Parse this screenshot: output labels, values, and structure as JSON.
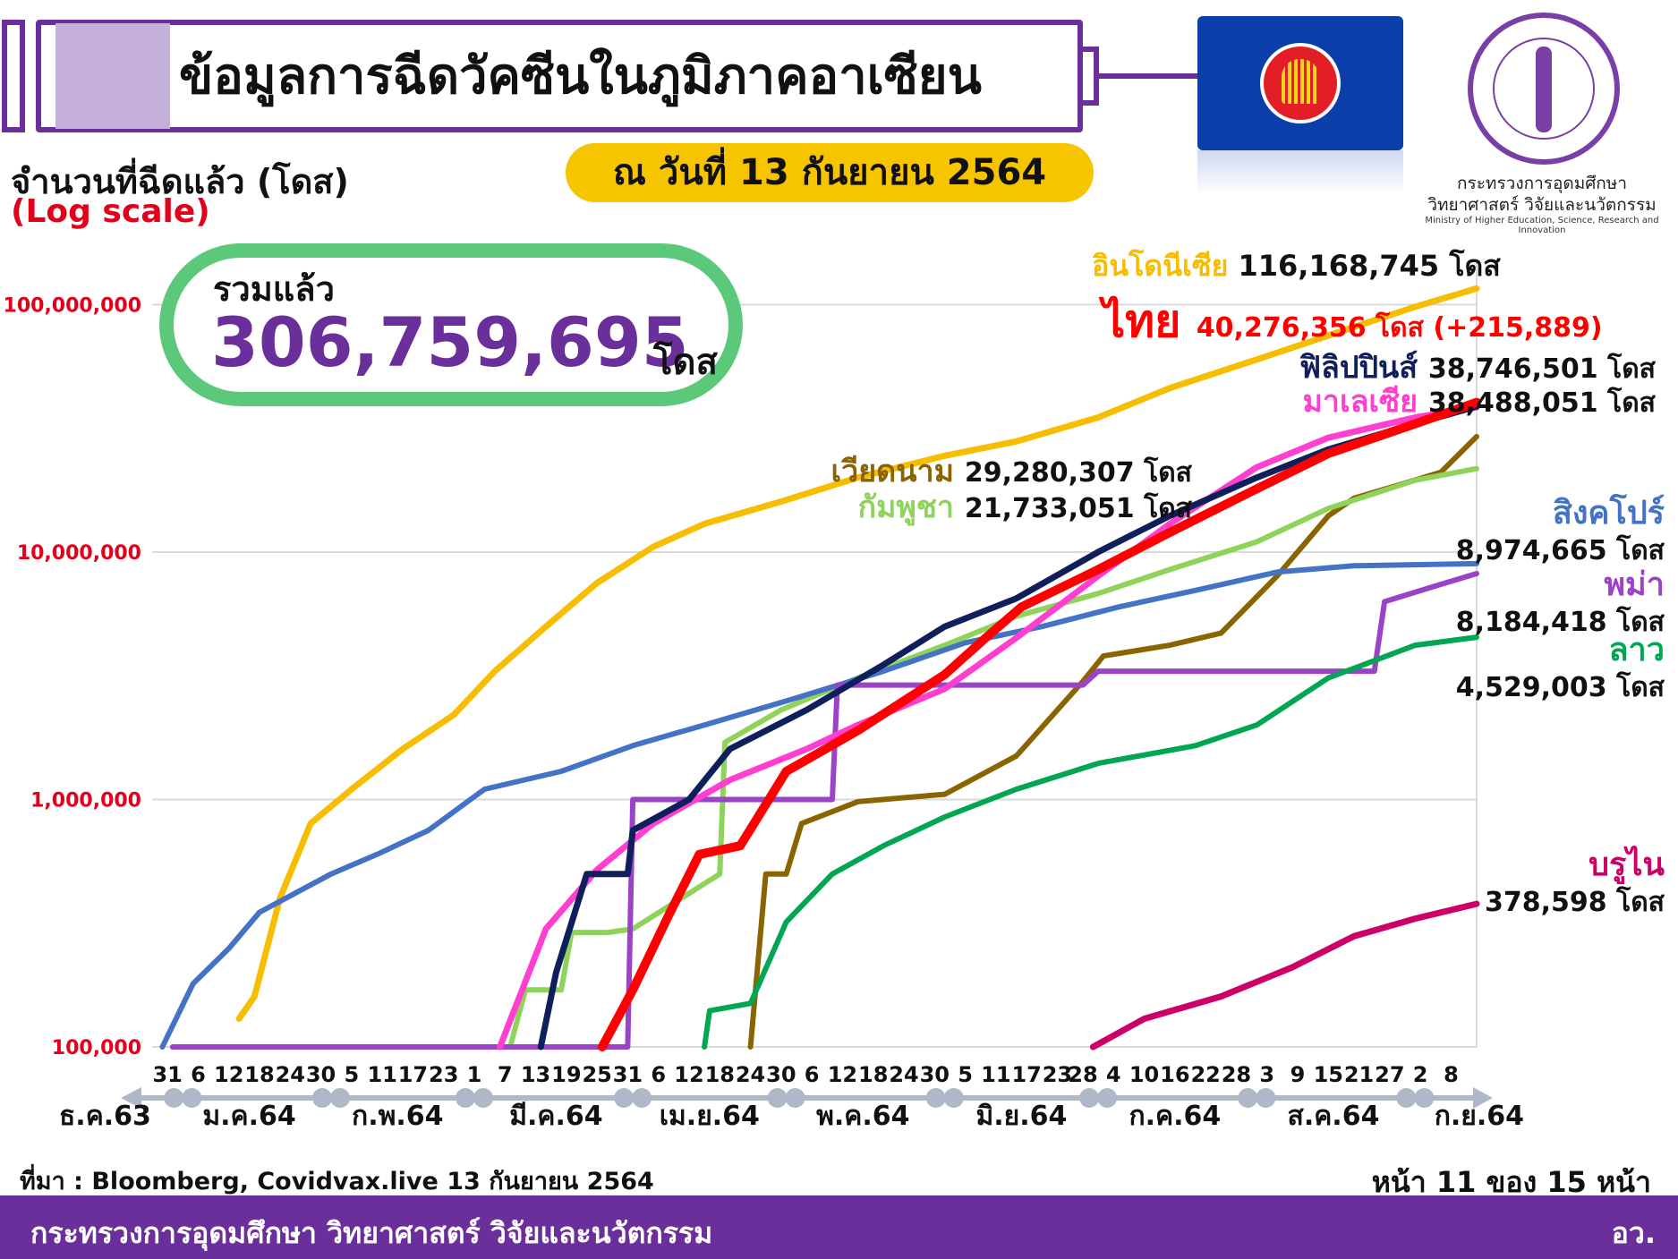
{
  "header": {
    "title": "ข้อมูลการฉีดวัคซีนในภูมิภาคอาเซียน",
    "date": "ณ วันที่ 13 กันยายน 2564"
  },
  "ministry": {
    "label_line1": "กระทรวงการอุดมศึกษา",
    "label_line2": "วิทยาศาสตร์ วิจัยและนวัตกรรม",
    "label_en": "Ministry of Higher Education, Science, Research and Innovation"
  },
  "total": {
    "label": "รวมแล้ว",
    "value": "306,759,695",
    "unit": "โดส"
  },
  "footer": {
    "source": "ที่มา : Bloomberg, Covidvax.live 13 กันยายน 2564",
    "page": "หน้า 11 ของ 15 หน้า",
    "org": "กระทรวงการอุดมศึกษา วิทยาศาสตร์ วิจัยและนวัตกรรม",
    "abbr": "อว."
  },
  "colors": {
    "indonesia": "#f7bd00",
    "thailand": "#ff0000",
    "philippines": "#0f1f5c",
    "malaysia": "#ff3fd0",
    "vietnam": "#8a6400",
    "cambodia": "#8fd35a",
    "singapore": "#4472c4",
    "myanmar": "#9a42c8",
    "laos": "#00a651",
    "brunei": "#cc0066",
    "grid": "#d9d9d9",
    "axis": "#aeb8c8"
  },
  "chart_data": {
    "type": "line",
    "yscale": "log",
    "ylabel": "จำนวนที่ฉีดแล้ว (โดส)",
    "ylabel_note": "(Log scale)",
    "ylim": [
      100000,
      140000000
    ],
    "yticks": [
      {
        "value": 100000,
        "label": "100,000"
      },
      {
        "value": 1000000,
        "label": "1,000,000"
      },
      {
        "value": 10000000,
        "label": "10,000,000"
      },
      {
        "value": 100000000,
        "label": "100,000,000"
      }
    ],
    "xlim": [
      "2020-12-28",
      "2021-09-13"
    ],
    "xticks": [
      {
        "date": "2020-12-31",
        "label": "31"
      },
      {
        "date": "2021-01-06",
        "label": "6"
      },
      {
        "date": "2021-01-12",
        "label": "12"
      },
      {
        "date": "2021-01-18",
        "label": "18"
      },
      {
        "date": "2021-01-24",
        "label": "24"
      },
      {
        "date": "2021-01-30",
        "label": "30"
      },
      {
        "date": "2021-02-05",
        "label": "5"
      },
      {
        "date": "2021-02-11",
        "label": "11"
      },
      {
        "date": "2021-02-17",
        "label": "17"
      },
      {
        "date": "2021-02-23",
        "label": "23"
      },
      {
        "date": "2021-03-01",
        "label": "1"
      },
      {
        "date": "2021-03-07",
        "label": "7"
      },
      {
        "date": "2021-03-13",
        "label": "13"
      },
      {
        "date": "2021-03-19",
        "label": "19"
      },
      {
        "date": "2021-03-25",
        "label": "25"
      },
      {
        "date": "2021-03-31",
        "label": "31"
      },
      {
        "date": "2021-04-06",
        "label": "6"
      },
      {
        "date": "2021-04-12",
        "label": "12"
      },
      {
        "date": "2021-04-18",
        "label": "18"
      },
      {
        "date": "2021-04-24",
        "label": "24"
      },
      {
        "date": "2021-04-30",
        "label": "30"
      },
      {
        "date": "2021-05-06",
        "label": "6"
      },
      {
        "date": "2021-05-12",
        "label": "12"
      },
      {
        "date": "2021-05-18",
        "label": "18"
      },
      {
        "date": "2021-05-24",
        "label": "24"
      },
      {
        "date": "2021-05-30",
        "label": "30"
      },
      {
        "date": "2021-06-05",
        "label": "5"
      },
      {
        "date": "2021-06-11",
        "label": "11"
      },
      {
        "date": "2021-06-17",
        "label": "17"
      },
      {
        "date": "2021-06-23",
        "label": "23"
      },
      {
        "date": "2021-06-28",
        "label": "28"
      },
      {
        "date": "2021-07-04",
        "label": "4"
      },
      {
        "date": "2021-07-10",
        "label": "10"
      },
      {
        "date": "2021-07-16",
        "label": "16"
      },
      {
        "date": "2021-07-22",
        "label": "22"
      },
      {
        "date": "2021-07-28",
        "label": "28"
      },
      {
        "date": "2021-08-03",
        "label": "3"
      },
      {
        "date": "2021-08-09",
        "label": "9"
      },
      {
        "date": "2021-08-15",
        "label": "15"
      },
      {
        "date": "2021-08-21",
        "label": "21"
      },
      {
        "date": "2021-08-27",
        "label": "27"
      },
      {
        "date": "2021-09-02",
        "label": "2"
      },
      {
        "date": "2021-09-08",
        "label": "8"
      }
    ],
    "months": [
      {
        "date": "2020-12-28",
        "label": "ธ.ค.63"
      },
      {
        "date": "2021-01-16",
        "label": "ม.ค.64"
      },
      {
        "date": "2021-02-14",
        "label": "ก.พ.64"
      },
      {
        "date": "2021-03-17",
        "label": "มี.ค.64"
      },
      {
        "date": "2021-04-16",
        "label": "เม.ย.64"
      },
      {
        "date": "2021-05-16",
        "label": "พ.ค.64"
      },
      {
        "date": "2021-06-16",
        "label": "มิ.ย.64"
      },
      {
        "date": "2021-07-16",
        "label": "ก.ค.64"
      },
      {
        "date": "2021-08-16",
        "label": "ส.ค.64"
      },
      {
        "date": "2021-09-13",
        "label": "ก.ย.64"
      }
    ],
    "month_breaks": [
      "2021-01-03",
      "2021-02-01",
      "2021-03-01",
      "2021-04-01",
      "2021-05-01",
      "2021-06-01",
      "2021-07-01",
      "2021-08-01",
      "2021-09-01"
    ],
    "series": [
      {
        "key": "indonesia",
        "name": "อินโดนีเซีย",
        "total": "116,168,745",
        "unit": "โดส",
        "width": 7,
        "points": [
          [
            "2021-01-14",
            130000
          ],
          [
            "2021-01-17",
            160000
          ],
          [
            "2021-01-22",
            400000
          ],
          [
            "2021-01-28",
            800000
          ],
          [
            "2021-02-05",
            1100000
          ],
          [
            "2021-02-15",
            1600000
          ],
          [
            "2021-02-25",
            2200000
          ],
          [
            "2021-03-05",
            3300000
          ],
          [
            "2021-03-15",
            5000000
          ],
          [
            "2021-03-25",
            7500000
          ],
          [
            "2021-04-05",
            10500000
          ],
          [
            "2021-04-15",
            13000000
          ],
          [
            "2021-04-30",
            16000000
          ],
          [
            "2021-05-15",
            20000000
          ],
          [
            "2021-06-01",
            24500000
          ],
          [
            "2021-06-15",
            28000000
          ],
          [
            "2021-07-01",
            35000000
          ],
          [
            "2021-07-15",
            46000000
          ],
          [
            "2021-08-01",
            60000000
          ],
          [
            "2021-08-15",
            75000000
          ],
          [
            "2021-09-01",
            98000000
          ],
          [
            "2021-09-13",
            116168745
          ]
        ]
      },
      {
        "key": "vietnam",
        "name": "เวียดนาม",
        "total": "29,280,307",
        "unit": "โดส",
        "width": 6,
        "points": [
          [
            "2021-04-24",
            100000
          ],
          [
            "2021-04-27",
            500000
          ],
          [
            "2021-05-01",
            500000
          ],
          [
            "2021-05-04",
            800000
          ],
          [
            "2021-05-15",
            980000
          ],
          [
            "2021-06-01",
            1050000
          ],
          [
            "2021-06-15",
            1500000
          ],
          [
            "2021-06-28",
            3000000
          ],
          [
            "2021-07-02",
            3800000
          ],
          [
            "2021-07-15",
            4200000
          ],
          [
            "2021-07-25",
            4700000
          ],
          [
            "2021-08-05",
            8000000
          ],
          [
            "2021-08-15",
            14000000
          ],
          [
            "2021-08-20",
            16500000
          ],
          [
            "2021-08-30",
            19000000
          ],
          [
            "2021-09-06",
            21000000
          ],
          [
            "2021-09-13",
            29280307
          ]
        ]
      },
      {
        "key": "cambodia",
        "name": "กัมพูชา",
        "total": "21,733,051",
        "unit": "โดส",
        "width": 6,
        "points": [
          [
            "2021-03-08",
            100000
          ],
          [
            "2021-03-11",
            170000
          ],
          [
            "2021-03-18",
            170000
          ],
          [
            "2021-03-20",
            290000
          ],
          [
            "2021-03-27",
            290000
          ],
          [
            "2021-04-01",
            300000
          ],
          [
            "2021-04-18",
            500000
          ],
          [
            "2021-04-19",
            1700000
          ],
          [
            "2021-04-30",
            2300000
          ],
          [
            "2021-05-15",
            3100000
          ],
          [
            "2021-06-01",
            4200000
          ],
          [
            "2021-06-15",
            5500000
          ],
          [
            "2021-07-01",
            6800000
          ],
          [
            "2021-07-15",
            8500000
          ],
          [
            "2021-08-01",
            11000000
          ],
          [
            "2021-08-15",
            15000000
          ],
          [
            "2021-09-01",
            19500000
          ],
          [
            "2021-09-13",
            21733051
          ]
        ]
      },
      {
        "key": "singapore",
        "name": "สิงคโปร์",
        "total": "8,974,665",
        "unit": "โดส",
        "width": 6,
        "points": [
          [
            "2020-12-30",
            100000
          ],
          [
            "2021-01-05",
            180000
          ],
          [
            "2021-01-12",
            250000
          ],
          [
            "2021-01-18",
            350000
          ],
          [
            "2021-02-01",
            500000
          ],
          [
            "2021-02-10",
            600000
          ],
          [
            "2021-02-20",
            750000
          ],
          [
            "2021-03-03",
            1100000
          ],
          [
            "2021-03-18",
            1300000
          ],
          [
            "2021-04-01",
            1650000
          ],
          [
            "2021-04-15",
            2000000
          ],
          [
            "2021-05-01",
            2500000
          ],
          [
            "2021-05-20",
            3300000
          ],
          [
            "2021-06-05",
            4300000
          ],
          [
            "2021-06-20",
            5000000
          ],
          [
            "2021-07-05",
            6000000
          ],
          [
            "2021-07-20",
            7000000
          ],
          [
            "2021-08-05",
            8300000
          ],
          [
            "2021-08-20",
            8800000
          ],
          [
            "2021-09-13",
            8974665
          ]
        ]
      },
      {
        "key": "myanmar",
        "name": "พม่า",
        "total": "8,184,418",
        "unit": "โดส",
        "width": 6,
        "points": [
          [
            "2021-01-01",
            100000
          ],
          [
            "2021-03-31",
            100000
          ],
          [
            "2021-04-01",
            1000000
          ],
          [
            "2021-05-10",
            1000000
          ],
          [
            "2021-05-11",
            2900000
          ],
          [
            "2021-06-28",
            2900000
          ],
          [
            "2021-07-01",
            3300000
          ],
          [
            "2021-08-24",
            3300000
          ],
          [
            "2021-08-26",
            6300000
          ],
          [
            "2021-09-05",
            7300000
          ],
          [
            "2021-09-13",
            8184418
          ]
        ]
      },
      {
        "key": "laos",
        "name": "ลาว",
        "total": "4,529,003",
        "unit": "โดส",
        "width": 6,
        "points": [
          [
            "2021-04-15",
            100000
          ],
          [
            "2021-04-16",
            140000
          ],
          [
            "2021-04-24",
            150000
          ],
          [
            "2021-05-01",
            320000
          ],
          [
            "2021-05-10",
            500000
          ],
          [
            "2021-05-20",
            650000
          ],
          [
            "2021-06-01",
            850000
          ],
          [
            "2021-06-15",
            1100000
          ],
          [
            "2021-07-01",
            1400000
          ],
          [
            "2021-07-20",
            1650000
          ],
          [
            "2021-08-01",
            2000000
          ],
          [
            "2021-08-15",
            3100000
          ],
          [
            "2021-09-01",
            4200000
          ],
          [
            "2021-09-13",
            4529003
          ]
        ]
      },
      {
        "key": "malaysia",
        "name": "มาเลเซีย",
        "total": "38,488,051",
        "unit": "โดส",
        "width": 7,
        "points": [
          [
            "2021-03-06",
            100000
          ],
          [
            "2021-03-15",
            300000
          ],
          [
            "2021-03-25",
            520000
          ],
          [
            "2021-04-05",
            800000
          ],
          [
            "2021-04-20",
            1200000
          ],
          [
            "2021-05-05",
            1600000
          ],
          [
            "2021-05-15",
            2000000
          ],
          [
            "2021-06-01",
            2800000
          ],
          [
            "2021-06-15",
            4500000
          ],
          [
            "2021-07-01",
            8000000
          ],
          [
            "2021-07-15",
            13000000
          ],
          [
            "2021-08-01",
            22000000
          ],
          [
            "2021-08-15",
            29000000
          ],
          [
            "2021-09-01",
            35000000
          ],
          [
            "2021-09-13",
            38488051
          ]
        ]
      },
      {
        "key": "philippines",
        "name": "ฟิลิปปินส์",
        "total": "38,746,501",
        "unit": "โดส",
        "width": 7,
        "points": [
          [
            "2021-03-14",
            100000
          ],
          [
            "2021-03-17",
            200000
          ],
          [
            "2021-03-23",
            500000
          ],
          [
            "2021-03-31",
            500000
          ],
          [
            "2021-04-01",
            750000
          ],
          [
            "2021-04-12",
            1000000
          ],
          [
            "2021-04-20",
            1600000
          ],
          [
            "2021-05-05",
            2300000
          ],
          [
            "2021-05-20",
            3500000
          ],
          [
            "2021-06-01",
            5000000
          ],
          [
            "2021-06-15",
            6500000
          ],
          [
            "2021-07-01",
            10000000
          ],
          [
            "2021-07-15",
            14000000
          ],
          [
            "2021-08-01",
            20000000
          ],
          [
            "2021-08-15",
            26000000
          ],
          [
            "2021-09-01",
            33000000
          ],
          [
            "2021-09-13",
            38746501
          ]
        ]
      },
      {
        "key": "thailand",
        "name": "ไทย",
        "total": "40,276,356",
        "unit": "โดส",
        "extra": "(+215,889)",
        "width": 10,
        "points": [
          [
            "2021-03-26",
            100000
          ],
          [
            "2021-04-01",
            170000
          ],
          [
            "2021-04-08",
            340000
          ],
          [
            "2021-04-14",
            600000
          ],
          [
            "2021-04-22",
            650000
          ],
          [
            "2021-05-01",
            1300000
          ],
          [
            "2021-05-15",
            1900000
          ],
          [
            "2021-06-01",
            3200000
          ],
          [
            "2021-06-09",
            4500000
          ],
          [
            "2021-06-16",
            6000000
          ],
          [
            "2021-07-01",
            8500000
          ],
          [
            "2021-07-15",
            12000000
          ],
          [
            "2021-08-01",
            18000000
          ],
          [
            "2021-08-15",
            25000000
          ],
          [
            "2021-09-01",
            33000000
          ],
          [
            "2021-09-13",
            40276356
          ]
        ]
      },
      {
        "key": "brunei",
        "name": "บรูไน",
        "total": "378,598",
        "unit": "โดส",
        "width": 7,
        "points": [
          [
            "2021-06-30",
            100000
          ],
          [
            "2021-07-10",
            130000
          ],
          [
            "2021-07-25",
            160000
          ],
          [
            "2021-08-08",
            210000
          ],
          [
            "2021-08-20",
            280000
          ],
          [
            "2021-09-01",
            330000
          ],
          [
            "2021-09-13",
            378598
          ]
        ]
      }
    ]
  }
}
